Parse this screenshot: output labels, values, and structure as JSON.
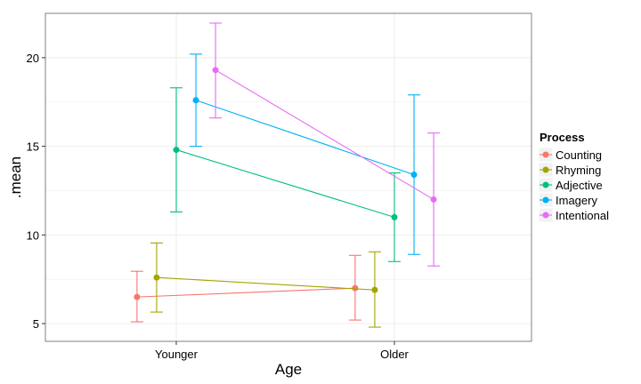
{
  "chart_data": {
    "type": "line",
    "categories": [
      "Younger",
      "Older"
    ],
    "xlabel": "Age",
    "ylabel": ".mean",
    "ylim": [
      4.0,
      22.5
    ],
    "yticks": [
      5,
      10,
      15,
      20
    ],
    "grid": true,
    "legend": {
      "title": "Process",
      "position": "right"
    },
    "series": [
      {
        "name": "Counting",
        "color": "#F8766D",
        "mean": [
          6.5,
          7.0
        ],
        "lower": [
          5.1,
          5.2
        ],
        "upper": [
          7.95,
          8.85
        ]
      },
      {
        "name": "Rhyming",
        "color": "#A3A500",
        "mean": [
          7.6,
          6.9
        ],
        "lower": [
          5.65,
          4.8
        ],
        "upper": [
          9.55,
          9.05
        ]
      },
      {
        "name": "Adjective",
        "color": "#00BF7D",
        "mean": [
          14.8,
          11.0
        ],
        "lower": [
          11.3,
          8.5
        ],
        "upper": [
          18.3,
          13.5
        ]
      },
      {
        "name": "Imagery",
        "color": "#00B0F6",
        "mean": [
          17.6,
          13.4
        ],
        "lower": [
          15.0,
          8.9
        ],
        "upper": [
          20.2,
          17.9
        ]
      },
      {
        "name": "Intentional",
        "color": "#E76BF3",
        "mean": [
          19.3,
          12.0
        ],
        "lower": [
          16.6,
          8.25
        ],
        "upper": [
          21.95,
          15.75
        ]
      }
    ]
  }
}
